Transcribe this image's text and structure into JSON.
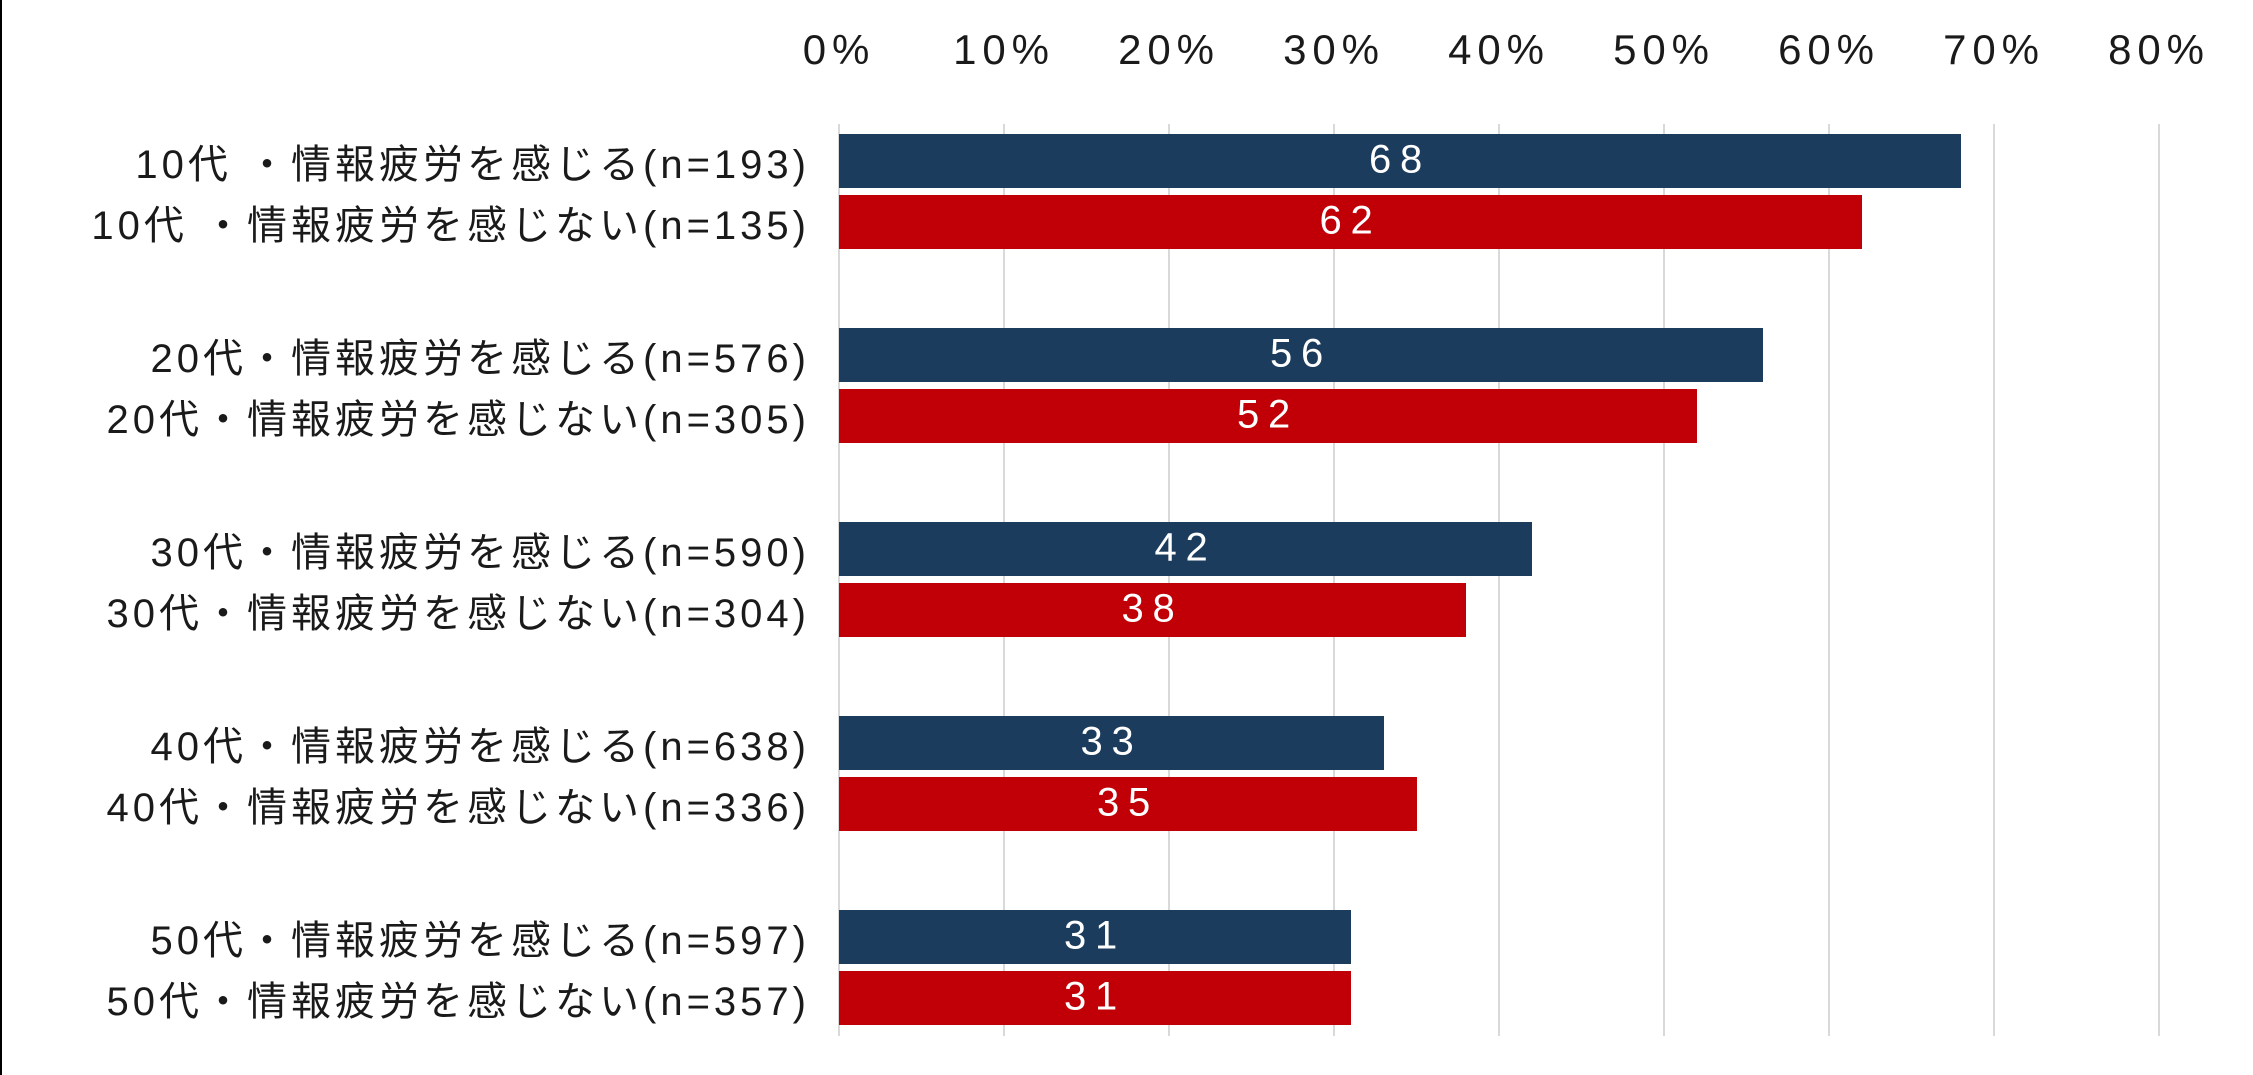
{
  "colors": {
    "series_feel": "#1B3C5C",
    "series_not_feel": "#C00006",
    "gridline": "#D9D9D9",
    "axis_text": "#1A1A1A",
    "value_text": "#FFFFFF",
    "background": "#FFFFFF",
    "left_border": "#000000"
  },
  "chart_data": {
    "type": "bar",
    "orientation": "horizontal",
    "title": "",
    "xlabel": "",
    "ylabel": "",
    "xlim": [
      0,
      80
    ],
    "grid": true,
    "tick_interval_pct": 10,
    "x_ticks": [
      "0%",
      "10%",
      "20%",
      "30%",
      "40%",
      "50%",
      "60%",
      "70%",
      "80%"
    ],
    "value_label_style": "centered-white-inside-bar",
    "series": [
      {
        "name": "情報疲労を感じる",
        "color_key": "series_feel"
      },
      {
        "name": "情報疲労を感じない",
        "color_key": "series_not_feel"
      }
    ],
    "rows": [
      {
        "label": "10代 ・情報疲労を感じる(n=193)",
        "value": 68,
        "value_text": "68",
        "series": 0,
        "group": 0
      },
      {
        "label": "10代 ・情報疲労を感じない(n=135)",
        "value": 62,
        "value_text": "62",
        "series": 1,
        "group": 0
      },
      {
        "label": "20代・情報疲労を感じる(n=576)",
        "value": 56,
        "value_text": "56",
        "series": 0,
        "group": 1
      },
      {
        "label": "20代・情報疲労を感じない(n=305)",
        "value": 52,
        "value_text": "52",
        "series": 1,
        "group": 1
      },
      {
        "label": "30代・情報疲労を感じる(n=590)",
        "value": 42,
        "value_text": "42",
        "series": 0,
        "group": 2
      },
      {
        "label": "30代・情報疲労を感じない(n=304)",
        "value": 38,
        "value_text": "38",
        "series": 1,
        "group": 2
      },
      {
        "label": "40代・情報疲労を感じる(n=638)",
        "value": 33,
        "value_text": "33",
        "series": 0,
        "group": 3
      },
      {
        "label": "40代・情報疲労を感じない(n=336)",
        "value": 35,
        "value_text": "35",
        "series": 1,
        "group": 3
      },
      {
        "label": "50代・情報疲労を感じる(n=597)",
        "value": 31,
        "value_text": "31",
        "series": 0,
        "group": 4
      },
      {
        "label": "50代・情報疲労を感じない(n=357)",
        "value": 31,
        "value_text": "31",
        "series": 1,
        "group": 4
      }
    ]
  }
}
